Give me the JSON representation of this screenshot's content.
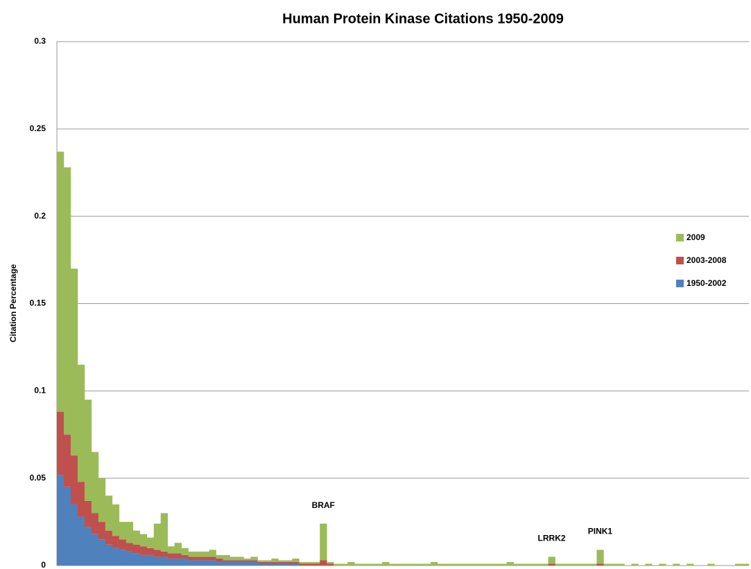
{
  "chart_data": {
    "type": "stacked_bar",
    "title": "Human Protein Kinase Citations 1950-2009",
    "y_label": "Citation Percentage",
    "categories": [
      null,
      null,
      null,
      null,
      null,
      null,
      null,
      null,
      null,
      null,
      null,
      null,
      null,
      null,
      null,
      null,
      null,
      null,
      null,
      null,
      null,
      null,
      null,
      null,
      null,
      null,
      null,
      null,
      null,
      null,
      null,
      null,
      null,
      null,
      null,
      null,
      null,
      null,
      "BRAF",
      null,
      null,
      null,
      null,
      null,
      null,
      null,
      null,
      null,
      null,
      null,
      null,
      null,
      null,
      null,
      null,
      null,
      null,
      null,
      null,
      null,
      null,
      null,
      null,
      null,
      null,
      null,
      null,
      null,
      null,
      null,
      null,
      "LRRK2",
      null,
      null,
      null,
      null,
      null,
      null,
      "PINK1",
      null,
      null,
      null,
      null,
      null,
      null,
      null,
      null,
      null,
      null,
      null,
      null,
      null,
      null,
      null,
      null,
      null,
      null,
      null,
      null,
      null
    ],
    "series": [
      {
        "name": "1950-2002",
        "color": "#4f81bd",
        "values": [
          0.052,
          0.045,
          0.035,
          0.028,
          0.022,
          0.018,
          0.015,
          0.012,
          0.01,
          0.009,
          0.008,
          0.007,
          0.006,
          0.006,
          0.005,
          0.005,
          0.004,
          0.004,
          0.004,
          0.003,
          0.003,
          0.003,
          0.003,
          0.002,
          0.002,
          0.002,
          0.002,
          0.002,
          0.002,
          0.001,
          0.001,
          0.001,
          0.001,
          0.001,
          0.001,
          0,
          0,
          0,
          0,
          0,
          0,
          0,
          0,
          0,
          0,
          0,
          0,
          0,
          0,
          0,
          0,
          0,
          0,
          0,
          0,
          0,
          0,
          0,
          0,
          0,
          0,
          0,
          0,
          0,
          0,
          0,
          0,
          0,
          0,
          0,
          0,
          0,
          0,
          0,
          0,
          0,
          0,
          0,
          0,
          0,
          0,
          0,
          0,
          0,
          0,
          0,
          0,
          0,
          0,
          0,
          0,
          0,
          0,
          0,
          0,
          0,
          0,
          0,
          0,
          0
        ]
      },
      {
        "name": "2003-2008",
        "color": "#c0504d",
        "values": [
          0.036,
          0.03,
          0.028,
          0.02,
          0.015,
          0.012,
          0.01,
          0.008,
          0.007,
          0.006,
          0.005,
          0.005,
          0.005,
          0.004,
          0.004,
          0.003,
          0.003,
          0.003,
          0.002,
          0.002,
          0.002,
          0.002,
          0.002,
          0.002,
          0.001,
          0.001,
          0.001,
          0.001,
          0.001,
          0.001,
          0.001,
          0.001,
          0.001,
          0.001,
          0.001,
          0.001,
          0.001,
          0.001,
          0.003,
          0.001,
          0,
          0,
          0,
          0,
          0,
          0,
          0,
          0,
          0,
          0,
          0,
          0,
          0,
          0,
          0,
          0,
          0,
          0,
          0,
          0,
          0,
          0,
          0,
          0,
          0,
          0,
          0,
          0,
          0,
          0,
          0,
          0.001,
          0,
          0,
          0,
          0,
          0,
          0,
          0.001,
          0,
          0,
          0,
          0,
          0,
          0,
          0,
          0,
          0,
          0,
          0,
          0,
          0,
          0,
          0,
          0,
          0,
          0,
          0,
          0,
          0
        ]
      },
      {
        "name": "2009",
        "color": "#9bbb59",
        "values": [
          0.149,
          0.153,
          0.107,
          0.067,
          0.058,
          0.035,
          0.025,
          0.02,
          0.018,
          0.01,
          0.012,
          0.008,
          0.007,
          0.006,
          0.015,
          0.022,
          0.004,
          0.006,
          0.004,
          0.003,
          0.003,
          0.003,
          0.004,
          0.002,
          0.003,
          0.002,
          0.002,
          0.001,
          0.002,
          0.001,
          0.001,
          0.002,
          0.001,
          0.001,
          0.002,
          0.001,
          0.001,
          0.001,
          0.021,
          0.001,
          0.001,
          0.001,
          0.002,
          0.001,
          0.001,
          0.001,
          0.001,
          0.002,
          0.001,
          0.001,
          0.001,
          0.001,
          0.001,
          0.001,
          0.002,
          0.001,
          0.001,
          0.001,
          0.001,
          0.001,
          0.001,
          0.001,
          0.001,
          0.001,
          0.001,
          0.002,
          0.001,
          0.001,
          0.001,
          0.001,
          0.001,
          0.004,
          0.001,
          0.001,
          0.001,
          0.001,
          0.001,
          0.001,
          0.008,
          0.001,
          0.001,
          0.001,
          0,
          0.001,
          0,
          0.001,
          0,
          0.001,
          0,
          0.001,
          0,
          0.001,
          0,
          0,
          0.001,
          0,
          0,
          0,
          0.001,
          0.001
        ]
      }
    ],
    "ylim": [
      0,
      0.3
    ],
    "yticks": [
      0,
      0.05,
      0.1,
      0.15,
      0.2,
      0.25,
      0.3
    ],
    "grid": true,
    "legend": "right"
  }
}
